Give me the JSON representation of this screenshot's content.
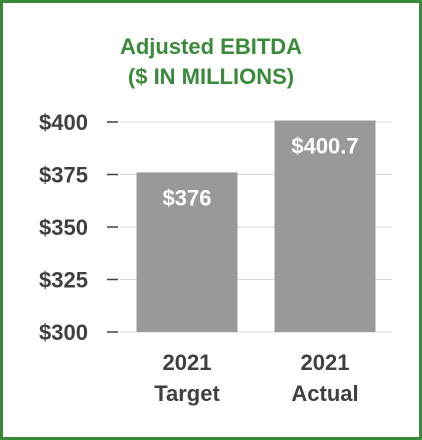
{
  "colors": {
    "border": "#3a8a3a",
    "title": "#3a8a3a",
    "bar": "#999999",
    "tick_text": "#404040",
    "data_label": "#ffffff",
    "gridline": "#d9d9d9"
  },
  "chart_data": {
    "type": "bar",
    "title": "Adjusted EBITDA",
    "subtitle": "($ IN MILLIONS)",
    "categories": [
      [
        "2021",
        "Target"
      ],
      [
        "2021",
        "Actual"
      ]
    ],
    "values": [
      376,
      400.7
    ],
    "data_labels": [
      "$376",
      "$400.7"
    ],
    "ylim": [
      300,
      400
    ],
    "yticks": [
      300,
      325,
      350,
      375,
      400
    ],
    "ytick_labels": [
      "$300",
      "$325",
      "$350",
      "$375",
      "$400"
    ],
    "grid": true,
    "legend": "none"
  }
}
